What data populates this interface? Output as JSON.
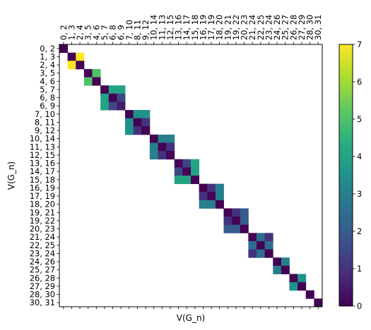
{
  "chart_data": {
    "type": "heatmap",
    "title": "",
    "xlabel": "V(G_n)",
    "ylabel": "V(G_n)",
    "categories": [
      "0, 2",
      "1, 3",
      "2, 4",
      "3, 5",
      "4, 6",
      "5, 7",
      "6, 8",
      "6, 9",
      "7, 10",
      "8, 11",
      "9, 12",
      "10, 14",
      "11, 13",
      "12, 15",
      "13, 16",
      "14, 17",
      "15, 18",
      "16, 19",
      "17, 19",
      "18, 20",
      "19, 21",
      "19, 22",
      "20, 23",
      "21, 24",
      "22, 25",
      "23, 24",
      "24, 26",
      "25, 27",
      "26, 28",
      "27, 29",
      "28, 30",
      "30, 31"
    ],
    "x_tick_labels_visible": true,
    "y_tick_labels_visible": true,
    "blocks": [
      {
        "rows": [
          0
        ],
        "values": [
          [
            0
          ]
        ]
      },
      {
        "rows": [
          1,
          2
        ],
        "values": [
          [
            0,
            7
          ],
          [
            7,
            0
          ]
        ]
      },
      {
        "rows": [
          3,
          4
        ],
        "values": [
          [
            0,
            5
          ],
          [
            5,
            0
          ]
        ]
      },
      {
        "rows": [
          5,
          6,
          7
        ],
        "values": [
          [
            0,
            4,
            4
          ],
          [
            4,
            0,
            1.5
          ],
          [
            4,
            1.5,
            0.5
          ]
        ]
      },
      {
        "rows": [
          8,
          9,
          10
        ],
        "values": [
          [
            0,
            3.5,
            3.5
          ],
          [
            3.5,
            0,
            1
          ],
          [
            3.5,
            1,
            0
          ]
        ]
      },
      {
        "rows": [
          11,
          12,
          13
        ],
        "values": [
          [
            0,
            3,
            3
          ],
          [
            3,
            0,
            1
          ],
          [
            3,
            1,
            0
          ]
        ]
      },
      {
        "rows": [
          14,
          15,
          16
        ],
        "values": [
          [
            0,
            1.5,
            4
          ],
          [
            1.5,
            0,
            4
          ],
          [
            4,
            4,
            0
          ]
        ]
      },
      {
        "rows": [
          17,
          18,
          19
        ],
        "values": [
          [
            0,
            1,
            3
          ],
          [
            1,
            0,
            3
          ],
          [
            3,
            3,
            0
          ]
        ]
      },
      {
        "rows": [
          20,
          21,
          22
        ],
        "values": [
          [
            0,
            1,
            2
          ],
          [
            1,
            0,
            2
          ],
          [
            2,
            2,
            0
          ]
        ]
      },
      {
        "rows": [
          23,
          24,
          25
        ],
        "values": [
          [
            0,
            2.5,
            1
          ],
          [
            2.5,
            0,
            2.5
          ],
          [
            1,
            2.5,
            0
          ]
        ]
      },
      {
        "rows": [
          26,
          27
        ],
        "values": [
          [
            0,
            3
          ],
          [
            3,
            0
          ]
        ]
      },
      {
        "rows": [
          28,
          29
        ],
        "values": [
          [
            0,
            3.5
          ],
          [
            3.5,
            0
          ]
        ]
      },
      {
        "rows": [
          30
        ],
        "values": [
          [
            0
          ]
        ]
      },
      {
        "rows": [
          31
        ],
        "values": [
          [
            0
          ]
        ]
      }
    ],
    "colorbar": {
      "colormap": "viridis",
      "range": [
        0,
        7
      ],
      "ticks": [
        "0",
        "1",
        "2",
        "3",
        "4",
        "5",
        "6",
        "7"
      ]
    }
  }
}
